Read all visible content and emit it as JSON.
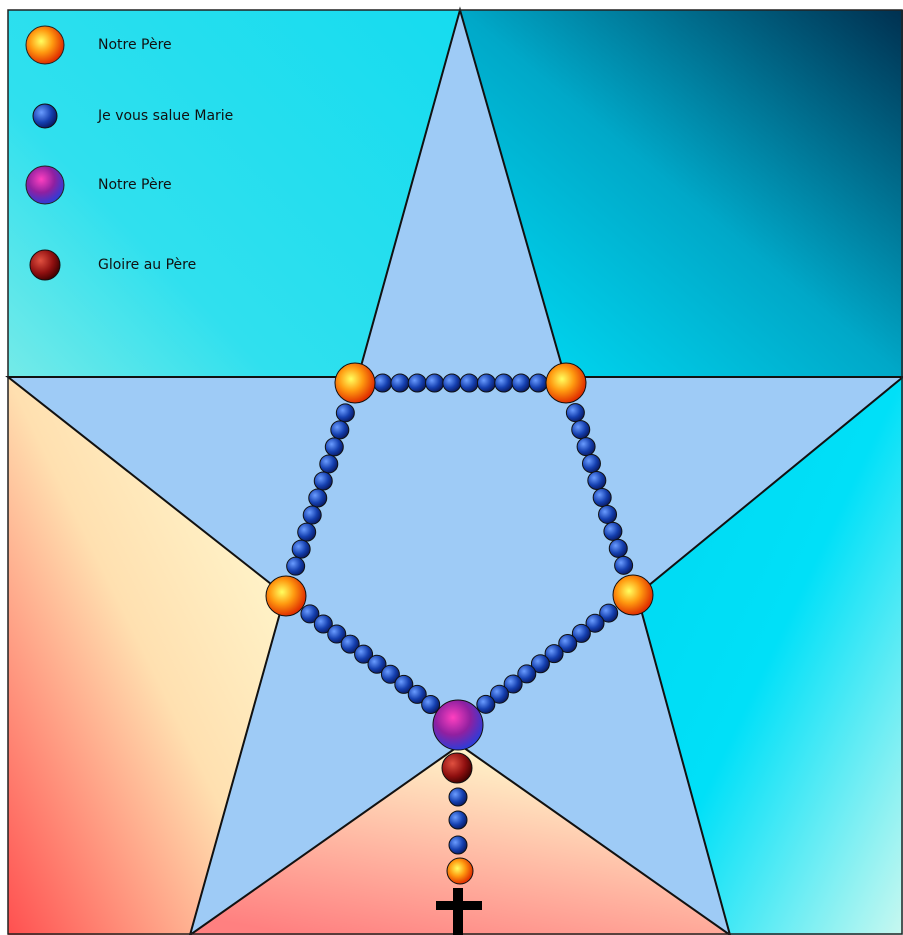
{
  "legend": {
    "items": [
      {
        "label": "Notre Père"
      },
      {
        "label": "Je vous salue Marie"
      },
      {
        "label": "Notre Père"
      },
      {
        "label": "Gloire au Père"
      }
    ]
  }
}
